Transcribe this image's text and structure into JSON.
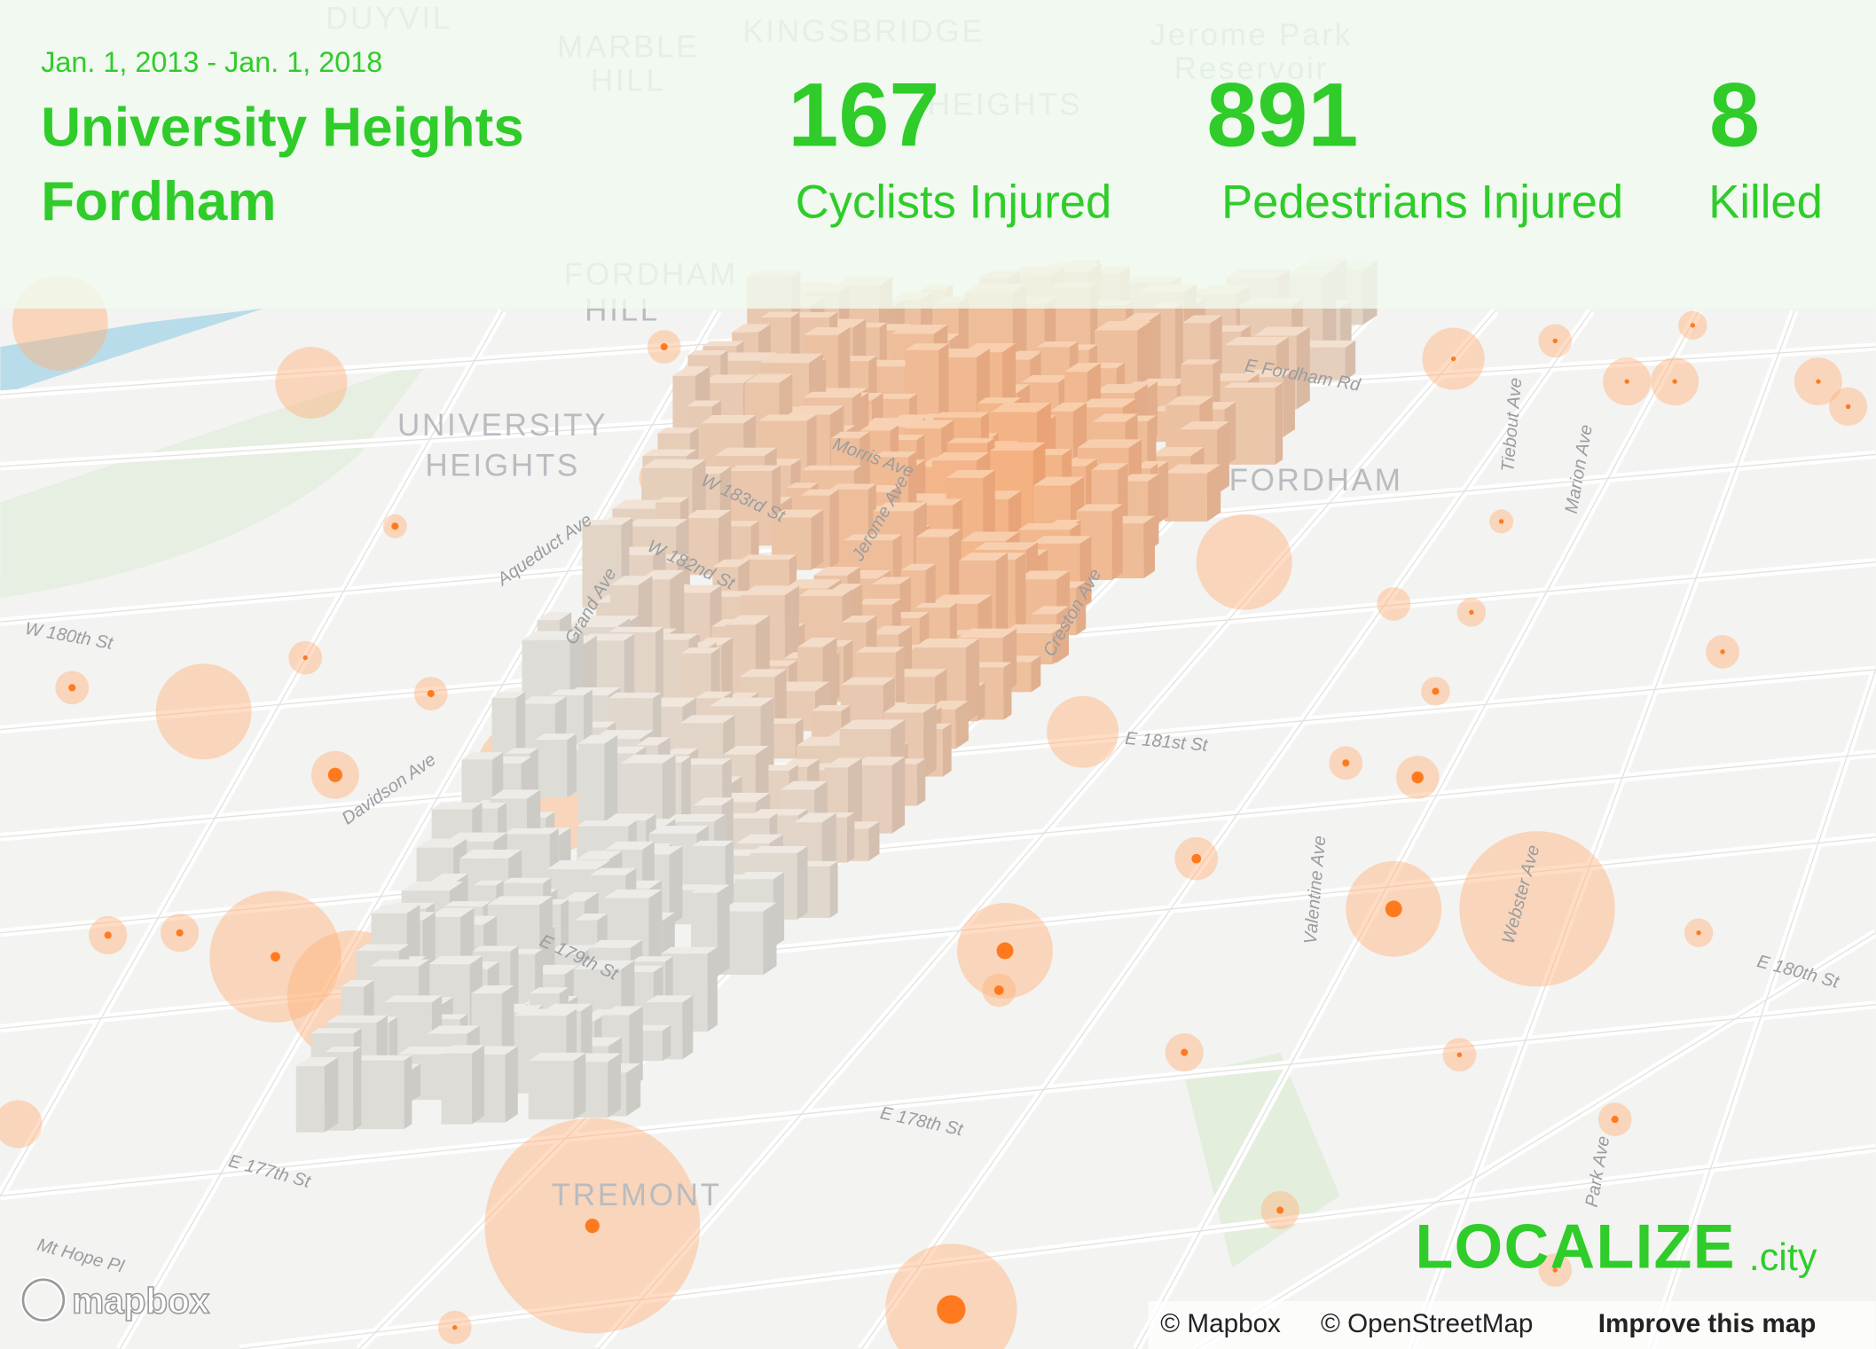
{
  "header": {
    "date_range": "Jan. 1, 2013 - Jan. 1, 2018",
    "title_lines": [
      "University Heights",
      "Fordham"
    ]
  },
  "stats": [
    {
      "value": "167",
      "label": "Cyclists Injured"
    },
    {
      "value": "891",
      "label": "Pedestrians Injured"
    },
    {
      "value": "8",
      "label": "Killed"
    }
  ],
  "place_labels": [
    "UNIVERSITY",
    "HEIGHTS",
    "FORDHAM",
    "TREMONT",
    "FORDHAM",
    "HILL",
    "KINGSBRIDGE",
    "HEIGHTS",
    "MARBLE",
    "HILL",
    "DUYVIL",
    "Jerome Park",
    "Reservoir"
  ],
  "street_labels": [
    "W 180th St",
    "Aqueduct Ave",
    "Grand Ave",
    "W 182nd St",
    "W 183rd St",
    "Jerome Ave",
    "Davidson Ave",
    "E 179th St",
    "E 178th St",
    "E 177th St",
    "Mt Hope Pl",
    "Creston Ave",
    "E 181st St",
    "Valentine Ave",
    "Webster Ave",
    "E 180th St",
    "Park Ave",
    "E Fordham Rd",
    "Morris Ave",
    "Tiebout Ave",
    "Marion Ave"
  ],
  "logo": {
    "main": "LOCALIZE",
    "suffix": ".city"
  },
  "mapbox_logo": "mapbox",
  "attribution": [
    "© Mapbox",
    "© OpenStreetMap",
    "Improve this map"
  ]
}
